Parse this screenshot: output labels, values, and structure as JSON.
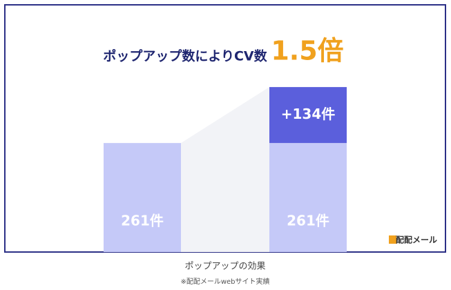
{
  "chart_data": {
    "type": "bar",
    "stacked": true,
    "title": "ポップアップ数によりCV数",
    "title_emphasis": "1.5倍",
    "categories": [
      null,
      null
    ],
    "series": [
      {
        "color": "#c5c9f8",
        "values": [
          261,
          261
        ],
        "value_labels": [
          "261件",
          "261件"
        ]
      },
      {
        "color": "#5b5fdc",
        "values": [
          null,
          134
        ],
        "value_labels": [
          null,
          "+134件"
        ]
      }
    ],
    "ylim": [
      0,
      415
    ],
    "caption": "ポップアップの効果",
    "source": "※配配メールwebサイト実績",
    "logo": "配配メール"
  }
}
